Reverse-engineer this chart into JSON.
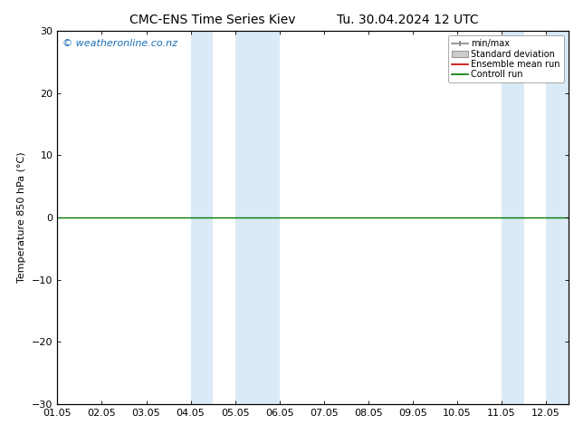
{
  "title": "CMC-ENS Time Series Kiev",
  "title2": "Tu. 30.04.2024 12 UTC",
  "ylabel": "Temperature 850 hPa (°C)",
  "ylim": [
    -30,
    30
  ],
  "yticks": [
    -30,
    -20,
    -10,
    0,
    10,
    20,
    30
  ],
  "xlim": [
    0.0,
    11.5
  ],
  "xtick_labels": [
    "01.05",
    "02.05",
    "03.05",
    "04.05",
    "05.05",
    "06.05",
    "07.05",
    "08.05",
    "09.05",
    "10.05",
    "11.05",
    "12.05"
  ],
  "xtick_positions": [
    0.0,
    1.0,
    2.0,
    3.0,
    4.0,
    5.0,
    6.0,
    7.0,
    8.0,
    9.0,
    10.0,
    11.0
  ],
  "shaded_bands": [
    {
      "x_start": 3.0,
      "x_end": 3.5,
      "color": "#daeaf7"
    },
    {
      "x_start": 4.0,
      "x_end": 5.0,
      "color": "#daeaf7"
    },
    {
      "x_start": 10.0,
      "x_end": 10.5,
      "color": "#daeaf7"
    },
    {
      "x_start": 11.0,
      "x_end": 11.5,
      "color": "#daeaf7"
    }
  ],
  "flat_line_y": 0.0,
  "flat_line_color": "#007700",
  "flat_line_xstart": 0.0,
  "flat_line_xend": 11.5,
  "background_color": "#ffffff",
  "plot_background": "#ffffff",
  "legend_labels": [
    "min/max",
    "Standard deviation",
    "Ensemble mean run",
    "Controll run"
  ],
  "legend_line_colors": [
    "#888888",
    "#cccccc",
    "#cc0000",
    "#007700"
  ],
  "watermark_text": "© weatheronline.co.nz",
  "watermark_color": "#1a6db5",
  "watermark_fontsize": 8,
  "title_fontsize": 10,
  "axis_fontsize": 8,
  "tick_fontsize": 8
}
